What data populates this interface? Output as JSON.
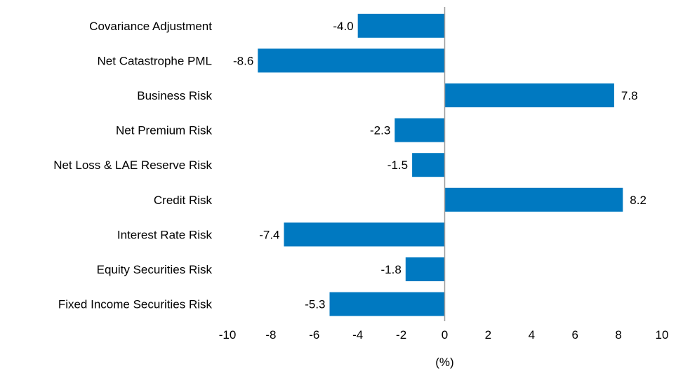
{
  "chart_data": {
    "type": "bar",
    "orientation": "horizontal",
    "title": "",
    "xlabel": "(%)",
    "ylabel": "",
    "xlim": [
      -10,
      10
    ],
    "xticks": [
      -10,
      -8,
      -6,
      -4,
      -2,
      0,
      2,
      4,
      6,
      8,
      10
    ],
    "grid": false,
    "legend": "none",
    "bar_color": "#0079C1",
    "axis_color": "#9E9E9E",
    "categories": [
      "Covariance Adjustment",
      "Net Catastrophe PML",
      "Business Risk",
      "Net Premium Risk",
      "Net Loss & LAE Reserve Risk",
      "Credit Risk",
      "Interest Rate Risk",
      "Equity Securities Risk",
      "Fixed Income Securities Risk"
    ],
    "values": [
      -4.0,
      -8.6,
      7.8,
      -2.3,
      -1.5,
      8.2,
      -7.4,
      -1.8,
      -5.3
    ],
    "value_labels": [
      "-4.0",
      "-8.6",
      "7.8",
      "-2.3",
      "-1.5",
      "8.2",
      "-7.4",
      "-1.8",
      "-5.3"
    ]
  }
}
